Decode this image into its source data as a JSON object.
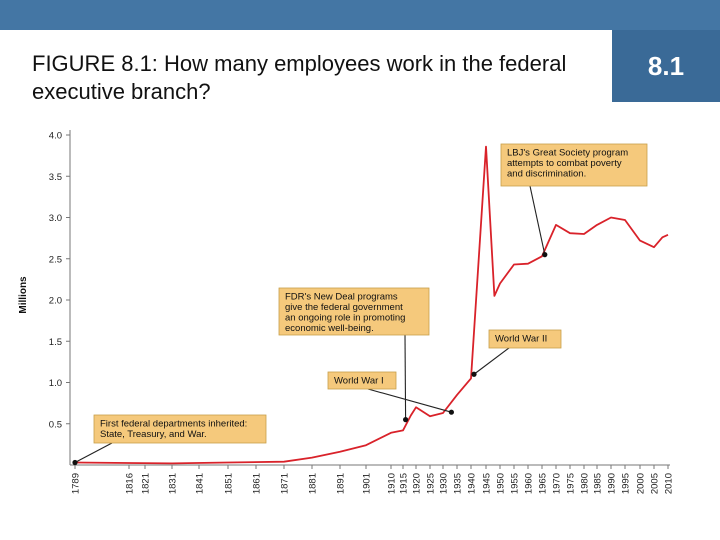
{
  "header": {
    "title": "FIGURE 8.1: How many employees work in the federal executive branch?",
    "section_number": "8.1"
  },
  "colors": {
    "top_bar": "#4476a4",
    "section_box": "#3a6a97",
    "series_line": "#d9222a",
    "callout_fill": "#f5c97c",
    "callout_border": "#c8a04a"
  },
  "chart_data": {
    "type": "line",
    "title": "",
    "xlabel": "",
    "ylabel": "Millions",
    "ylim": [
      0,
      4.0
    ],
    "yticks": [
      "4.0",
      "3.5",
      "3.0",
      "2.5",
      "2.0",
      "1.5",
      "1.0",
      "0.5"
    ],
    "xticks": [
      "1789",
      "1816",
      "1821",
      "1831",
      "1841",
      "1851",
      "1861",
      "1871",
      "1881",
      "1891",
      "1901",
      "1910",
      "1915",
      "1920",
      "1925",
      "1930",
      "1935",
      "1940",
      "1945",
      "1950",
      "1955",
      "1960",
      "1965",
      "1970",
      "1975",
      "1980",
      "1985",
      "1990",
      "1995",
      "2000",
      "2005",
      "2010"
    ],
    "grid": false,
    "series": [
      {
        "x": [
          1789,
          1831,
          1851,
          1871,
          1881,
          1891,
          1901,
          1910,
          1915,
          1918,
          1920,
          1925,
          1930,
          1935,
          1940,
          1945,
          1948,
          1950,
          1955,
          1960,
          1965,
          1970,
          1975,
          1980,
          1985,
          1990,
          1995,
          2000,
          2005,
          2008,
          2010
        ],
        "y": [
          0.03,
          0.02,
          0.03,
          0.04,
          0.09,
          0.16,
          0.24,
          0.39,
          0.42,
          0.6,
          0.7,
          0.59,
          0.63,
          0.85,
          1.05,
          3.86,
          2.05,
          2.2,
          2.43,
          2.44,
          2.53,
          2.91,
          2.81,
          2.8,
          2.91,
          3.0,
          2.97,
          2.72,
          2.64,
          2.76,
          2.79
        ]
      }
    ],
    "highlight_points": [
      {
        "x": 1789,
        "y": 0.03
      },
      {
        "x": 1916,
        "y": 0.55
      },
      {
        "x": 1933,
        "y": 0.64
      },
      {
        "x": 1941,
        "y": 1.1
      },
      {
        "x": 1966,
        "y": 2.55
      }
    ],
    "annotations": [
      {
        "text": "First federal departments inherited: State, Treasury, and War.",
        "lines": [
          "First federal departments inherited:",
          "State, Treasury, and War."
        ]
      },
      {
        "text": "FDR's New Deal programs give the federal government an ongoing role in promoting economic well-being.",
        "lines": [
          "FDR's New Deal programs",
          "give the federal government",
          "an ongoing role in promoting",
          "economic well-being."
        ]
      },
      {
        "text": "World War I",
        "lines": [
          "World War I"
        ]
      },
      {
        "text": "World War II",
        "lines": [
          "World War II"
        ]
      },
      {
        "text": "LBJ's Great Society program attempts to combat poverty and discrimination.",
        "lines": [
          "LBJ's Great Society program",
          "attempts to combat poverty",
          "and discrimination."
        ]
      }
    ]
  }
}
